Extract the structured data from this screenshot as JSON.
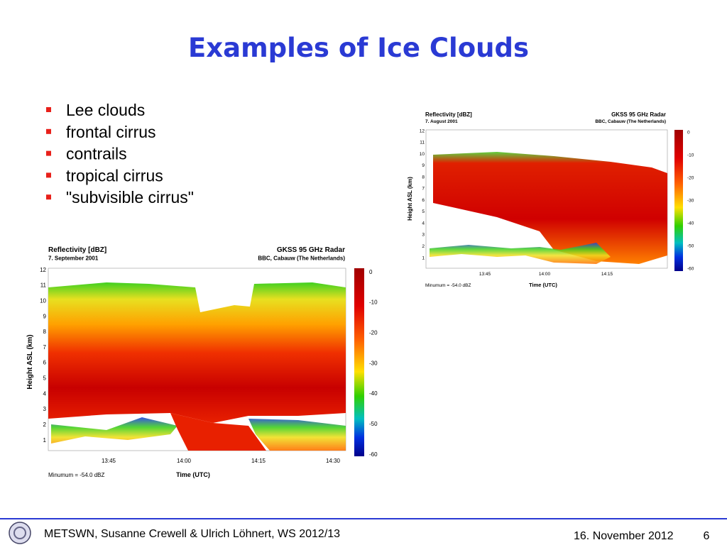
{
  "title": "Examples of Ice Clouds",
  "bullets": [
    "Lee clouds",
    "frontal cirrus",
    "contrails",
    "tropical cirrus",
    "\"subvisible cirrus\""
  ],
  "figures": [
    {
      "header_left": "Reflectivity [dBZ]",
      "date": "7. September 2001",
      "header_right": "GKSS 95 GHz Radar",
      "site": "BBC, Cabauw (The Netherlands)",
      "y_label": "Height ASL (km)",
      "y_ticks": [
        "12",
        "11",
        "10",
        "9",
        "8",
        "7",
        "6",
        "5",
        "4",
        "3",
        "2",
        "1"
      ],
      "x_ticks": [
        "13:45",
        "14:00",
        "14:15",
        "14:30"
      ],
      "x_label": "Time (UTC)",
      "note": "Minumum = -54.0 dBZ",
      "colorbar_ticks": [
        "0",
        "-10",
        "-20",
        "-30",
        "-40",
        "-50",
        "-60"
      ]
    },
    {
      "header_left": "Reflectivity [dBZ]",
      "date": "7. August 2001",
      "header_right": "GKSS 95 GHz Radar",
      "site": "BBC, Cabauw (The Netherlands)",
      "y_label": "Height ASL (km)",
      "y_ticks": [
        "12",
        "11",
        "10",
        "9",
        "8",
        "7",
        "6",
        "5",
        "4",
        "3",
        "2",
        "1"
      ],
      "x_ticks": [
        "13:45",
        "14:00",
        "14:15"
      ],
      "x_label": "Time (UTC)",
      "note": "Minumum = -54.0 dBZ",
      "colorbar_ticks": [
        "0",
        "-10",
        "-20",
        "-30",
        "-40",
        "-50",
        "-60"
      ]
    }
  ],
  "footer": {
    "text": "METSWN, Susanne Crewell & Ulrich Löhnert, WS 2012/13",
    "date": "16. November 2012",
    "page": "6"
  }
}
